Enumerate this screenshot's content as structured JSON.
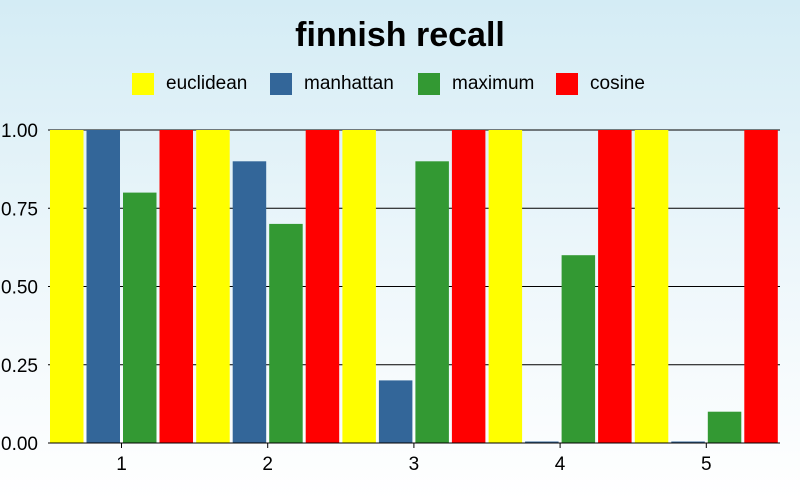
{
  "chart_data": {
    "type": "bar",
    "title": "finnish recall",
    "xlabel": "",
    "ylabel": "",
    "categories": [
      "1",
      "2",
      "3",
      "4",
      "5"
    ],
    "series": [
      {
        "name": "euclidean",
        "color": "#ffff00",
        "values": [
          1.0,
          1.0,
          1.0,
          1.0,
          1.0
        ]
      },
      {
        "name": "manhattan",
        "color": "#336699",
        "values": [
          1.0,
          0.9,
          0.2,
          0.0,
          0.0
        ]
      },
      {
        "name": "maximum",
        "color": "#339933",
        "values": [
          0.8,
          0.7,
          0.9,
          0.6,
          0.1
        ]
      },
      {
        "name": "cosine",
        "color": "#ff0000",
        "values": [
          1.0,
          1.0,
          1.0,
          1.0,
          1.0
        ]
      }
    ],
    "ylim": [
      0,
      1
    ],
    "yticks": [
      "0.00",
      "0.25",
      "0.50",
      "0.75",
      "1.00"
    ],
    "grid": true,
    "legend_position": "top-center"
  }
}
